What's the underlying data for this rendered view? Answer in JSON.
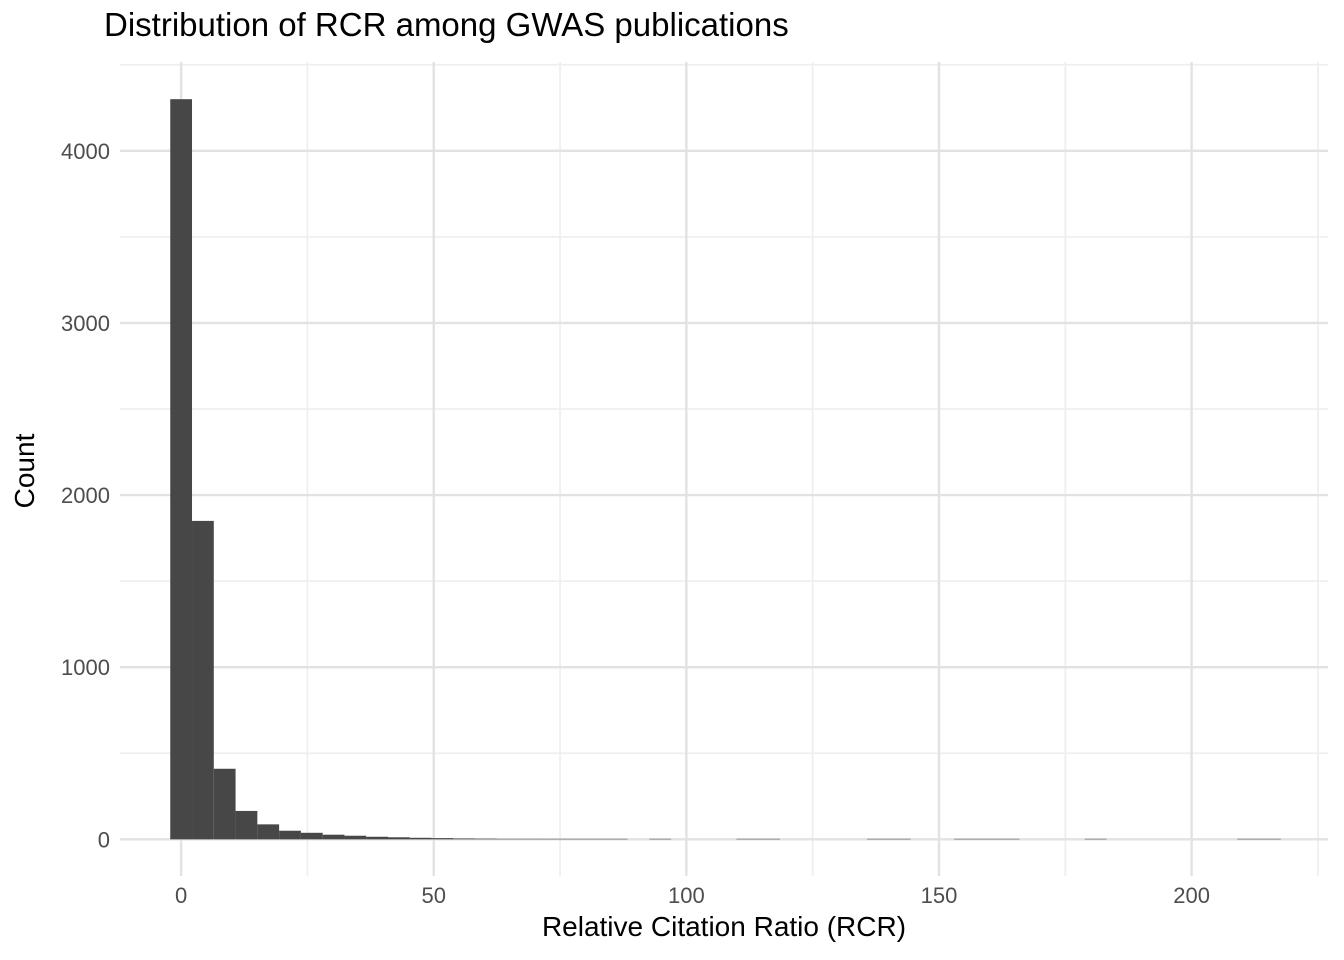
{
  "chart_data": {
    "type": "bar",
    "subtype": "histogram",
    "title": "Distribution of RCR among GWAS publications",
    "xlabel": "Relative Citation Ratio (RCR)",
    "ylabel": "Count",
    "legend": "none",
    "grid": "on",
    "bin_width": 4.31,
    "bin_centers": [
      0,
      4.31,
      8.62,
      12.93,
      17.24,
      21.55,
      25.86,
      30.17,
      34.48,
      38.79,
      43.1,
      47.41,
      51.72,
      56.03,
      60.34,
      64.65,
      68.96,
      73.27,
      77.58,
      81.89,
      86.2,
      90.51,
      94.82,
      99.13,
      103.44,
      107.75,
      112.06,
      116.37,
      120.68,
      124.99,
      129.3,
      133.61,
      137.92,
      142.23,
      146.54,
      150.85,
      155.16,
      159.47,
      163.78,
      168.09,
      172.4,
      176.71,
      181.02,
      185.33,
      189.64,
      193.95,
      198.26,
      202.57,
      206.88,
      211.19,
      215.5
    ],
    "counts": [
      4300,
      1850,
      410,
      165,
      87,
      50,
      38,
      27,
      21,
      15,
      12,
      9,
      7,
      5,
      4,
      3,
      3,
      2,
      1,
      1,
      1,
      0,
      2,
      0,
      0,
      0,
      1,
      1,
      0,
      0,
      0,
      0,
      1,
      1,
      0,
      0,
      1,
      1,
      1,
      0,
      0,
      0,
      1,
      0,
      0,
      0,
      0,
      0,
      0,
      1,
      1
    ],
    "x_axis": {
      "ticks": [
        0,
        50,
        100,
        150,
        200
      ],
      "minor_ticks": [
        25,
        75,
        125,
        175,
        225
      ],
      "range": [
        -12.1,
        227
      ]
    },
    "y_axis": {
      "ticks": [
        0,
        1000,
        2000,
        3000,
        4000
      ],
      "minor_ticks": [
        500,
        1500,
        2500,
        3500,
        4500
      ],
      "range": [
        -213,
        4516
      ]
    },
    "colors": {
      "bar": "#474747",
      "grid_major": "#e2e2e2",
      "grid_minor": "#efefef",
      "tick_label": "#4d4d4d",
      "title": "#000000",
      "background": "#ffffff"
    }
  }
}
